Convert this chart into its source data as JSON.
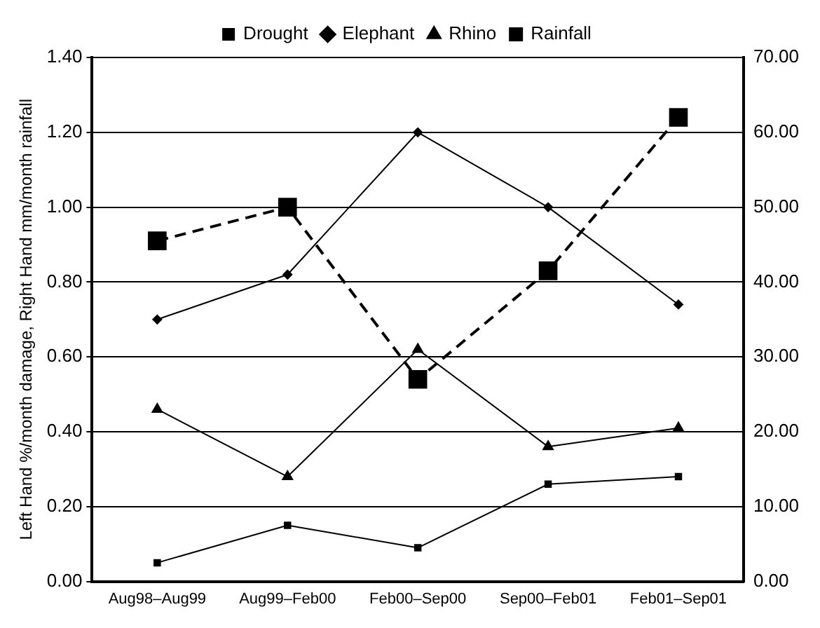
{
  "chart_data": {
    "type": "line",
    "ylabel": "Left Hand %/month damage, Right Hand mm/month rainfall",
    "categories": [
      "Aug98–Aug99",
      "Aug99–Feb00",
      "Feb00–Sep00",
      "Sep00–Feb01",
      "Feb01–Sep01"
    ],
    "series": [
      {
        "name": "Drought",
        "color": "#000000",
        "marker": "square",
        "line_style": "solid",
        "values": [
          0.05,
          0.15,
          0.09,
          0.26,
          0.28
        ]
      },
      {
        "name": "Elephant",
        "color": "#000000",
        "marker": "diamond",
        "line_style": "solid",
        "values": [
          0.7,
          0.82,
          1.2,
          1.0,
          0.74
        ]
      },
      {
        "name": "Rhino",
        "color": "#000000",
        "marker": "triangle",
        "line_style": "solid",
        "values": [
          0.46,
          0.28,
          0.62,
          0.36,
          0.41
        ]
      },
      {
        "name": "Rainfall",
        "color": "#000000",
        "marker": "square",
        "line_style": "dashed",
        "axis": "y2",
        "values": [
          45.5,
          50,
          27,
          41.5,
          62
        ]
      }
    ],
    "ylim": [
      0,
      1.4
    ],
    "yticks": [
      {
        "value": 0,
        "label": "0.00"
      },
      {
        "value": 0.2,
        "label": "0.20"
      },
      {
        "value": 0.4,
        "label": "0.40"
      },
      {
        "value": 0.6,
        "label": "0.60"
      },
      {
        "value": 0.8,
        "label": "0.80"
      },
      {
        "value": 1,
        "label": "1.00"
      },
      {
        "value": 1.2,
        "label": "1.20"
      },
      {
        "value": 1.4,
        "label": "1.40"
      }
    ],
    "y2lim": [
      0,
      70
    ],
    "y2ticks": [
      {
        "value": 0,
        "label": "0.00"
      },
      {
        "value": 10,
        "label": "10.00"
      },
      {
        "value": 20,
        "label": "20.00"
      },
      {
        "value": 30,
        "label": "30.00"
      },
      {
        "value": 40,
        "label": "40.00"
      },
      {
        "value": 50,
        "label": "50.00"
      },
      {
        "value": 60,
        "label": "60.00"
      },
      {
        "value": 70,
        "label": "70.00"
      }
    ],
    "grid": "y",
    "legend": "top"
  }
}
